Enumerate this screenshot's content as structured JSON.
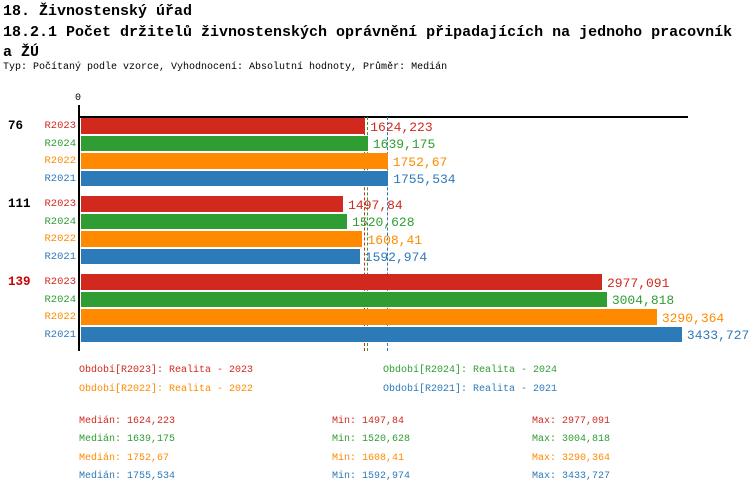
{
  "header": {
    "line1": "18. Živnostenský úřad",
    "line2": "18.2.1 Počet držitelů živnostenských oprávnění připadajících na jednoho pracovník",
    "line3": "a ŽÚ",
    "meta": "Typ: Počítaný podle vzorce, Vyhodnocení: Absolutní hodnoty, Průměr: Medián"
  },
  "colors": {
    "R2023": "#d2291f",
    "R2024": "#2f9d32",
    "R2022": "#ff8a00",
    "R2021": "#2d7ab9",
    "axis": "#000000",
    "group_label": "#000000",
    "group_label_highlight": "#cc0000"
  },
  "chart_data": {
    "type": "bar",
    "orientation": "horizontal",
    "title": "18.2.1 Počet držitelů živnostenských oprávnění připadajících na jednoho pracovníka ŽÚ",
    "average_type": "Medián",
    "x_axis": {
      "origin_label": "0",
      "min": 0,
      "max": 3480,
      "grid": false
    },
    "series_order": [
      "R2023",
      "R2024",
      "R2022",
      "R2021"
    ],
    "groups": [
      {
        "label": "76",
        "highlight": false,
        "bars": [
          {
            "series": "R2023",
            "value": 1624.223,
            "display": "1624,223"
          },
          {
            "series": "R2024",
            "value": 1639.175,
            "display": "1639,175"
          },
          {
            "series": "R2022",
            "value": 1752.67,
            "display": "1752,67"
          },
          {
            "series": "R2021",
            "value": 1755.534,
            "display": "1755,534"
          }
        ]
      },
      {
        "label": "111",
        "highlight": false,
        "bars": [
          {
            "series": "R2023",
            "value": 1497.84,
            "display": "1497,84"
          },
          {
            "series": "R2024",
            "value": 1520.628,
            "display": "1520,628"
          },
          {
            "series": "R2022",
            "value": 1608.41,
            "display": "1608,41"
          },
          {
            "series": "R2021",
            "value": 1592.974,
            "display": "1592,974"
          }
        ]
      },
      {
        "label": "139",
        "highlight": true,
        "bars": [
          {
            "series": "R2023",
            "value": 2977.091,
            "display": "2977,091"
          },
          {
            "series": "R2024",
            "value": 3004.818,
            "display": "3004,818"
          },
          {
            "series": "R2022",
            "value": 3290.364,
            "display": "3290,364"
          },
          {
            "series": "R2021",
            "value": 3433.727,
            "display": "3433,727"
          }
        ]
      }
    ],
    "median_lines": [
      {
        "series": "R2023",
        "value": 1624.223
      },
      {
        "series": "R2024",
        "value": 1639.175
      },
      {
        "series": "R2022",
        "value": 1752.67
      },
      {
        "series": "R2021",
        "value": 1755.534
      }
    ]
  },
  "legend": [
    {
      "series": "R2023",
      "label": "Období[R2023]: Realita - 2023"
    },
    {
      "series": "R2024",
      "label": "Období[R2024]: Realita - 2024"
    },
    {
      "series": "R2022",
      "label": "Období[R2022]: Realita - 2022"
    },
    {
      "series": "R2021",
      "label": "Období[R2021]: Realita - 2021"
    }
  ],
  "stats": [
    {
      "series": "R2023",
      "median": "Medián: 1624,223",
      "min": "Min: 1497,84",
      "max": "Max: 2977,091"
    },
    {
      "series": "R2024",
      "median": "Medián: 1639,175",
      "min": "Min: 1520,628",
      "max": "Max: 3004,818"
    },
    {
      "series": "R2022",
      "median": "Medián: 1752,67",
      "min": "Min: 1608,41",
      "max": "Max: 3290,364"
    },
    {
      "series": "R2021",
      "median": "Medián: 1755,534",
      "min": "Min: 1592,974",
      "max": "Max: 3433,727"
    }
  ]
}
